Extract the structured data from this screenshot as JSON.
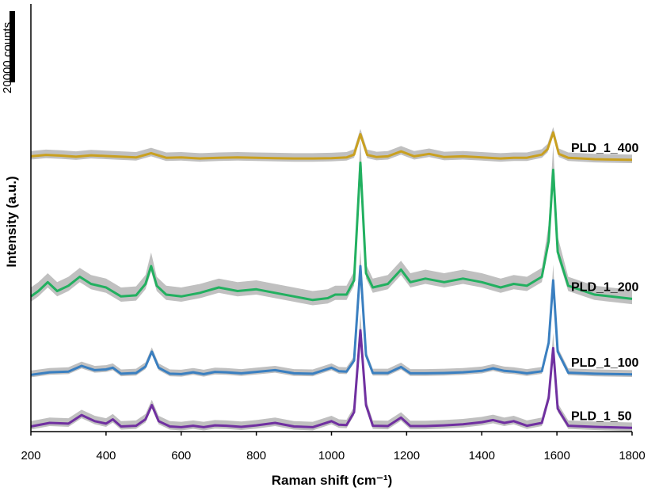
{
  "chart_data": {
    "type": "line",
    "title": "",
    "xlabel": "Raman shift (cm⁻¹)",
    "ylabel": "Intensity (a.u.)",
    "xlim": [
      200,
      1800
    ],
    "x_ticks": [
      200,
      400,
      600,
      800,
      1000,
      1200,
      1400,
      1600,
      1800
    ],
    "y_scale_bar": {
      "label": "20000 counts",
      "value": 20000
    },
    "grid": false,
    "legend": "none",
    "band_color": "#c0c0c0",
    "series": [
      {
        "name": "PLD_1_400",
        "color": "#c9a020",
        "offset": 75000,
        "x": [
          200,
          240,
          280,
          320,
          360,
          400,
          440,
          480,
          520,
          560,
          600,
          650,
          700,
          750,
          800,
          850,
          900,
          950,
          1000,
          1040,
          1060,
          1077,
          1095,
          1120,
          1150,
          1185,
          1220,
          1260,
          1300,
          1350,
          1400,
          1450,
          1485,
          1520,
          1560,
          1575,
          1590,
          1605,
          1630,
          1700,
          1800
        ],
        "y": [
          1800,
          2200,
          2000,
          1700,
          2100,
          1900,
          1700,
          1500,
          2700,
          1400,
          1500,
          1200,
          1400,
          1500,
          1400,
          1300,
          1200,
          1200,
          1300,
          1500,
          2300,
          8000,
          2200,
          1600,
          1800,
          3200,
          1800,
          2500,
          1600,
          1800,
          1500,
          1200,
          1400,
          1400,
          2300,
          3800,
          8500,
          2500,
          1400,
          1000,
          800
        ],
        "band": 1500
      },
      {
        "name": "PLD_1_200",
        "color": "#22b060",
        "offset": 35000,
        "x": [
          200,
          220,
          245,
          270,
          300,
          330,
          360,
          400,
          440,
          480,
          505,
          520,
          535,
          560,
          600,
          650,
          700,
          750,
          800,
          850,
          900,
          950,
          990,
          1010,
          1040,
          1060,
          1077,
          1092,
          1110,
          1150,
          1185,
          1210,
          1250,
          1300,
          1350,
          1400,
          1450,
          1485,
          1520,
          1560,
          1578,
          1590,
          1602,
          1630,
          1700,
          1800
        ],
        "y": [
          2500,
          4000,
          6500,
          4000,
          5500,
          8000,
          6000,
          5000,
          2500,
          2800,
          6000,
          11000,
          5500,
          3000,
          2500,
          3500,
          5000,
          4000,
          4500,
          3500,
          2500,
          1500,
          2000,
          3000,
          3000,
          7000,
          40000,
          9000,
          5000,
          6000,
          10000,
          6500,
          7500,
          6500,
          7500,
          6500,
          5000,
          6000,
          5500,
          8000,
          18000,
          38000,
          15000,
          5500,
          3000,
          1800
        ],
        "band": 2500
      },
      {
        "name": "PLD_1_100",
        "color": "#3a7fc0",
        "offset": 15000,
        "x": [
          200,
          250,
          300,
          335,
          370,
          400,
          418,
          440,
          480,
          505,
          522,
          540,
          570,
          600,
          632,
          660,
          690,
          720,
          760,
          800,
          850,
          900,
          950,
          1000,
          1020,
          1040,
          1060,
          1077,
          1092,
          1110,
          1150,
          1185,
          1210,
          1250,
          1300,
          1350,
          1400,
          1430,
          1460,
          1485,
          1520,
          1560,
          1578,
          1590,
          1602,
          1630,
          1700,
          1800
        ],
        "y": [
          500,
          1200,
          1400,
          3000,
          1800,
          2000,
          2500,
          800,
          1000,
          2800,
          7000,
          2500,
          800,
          700,
          1200,
          700,
          1300,
          1200,
          900,
          1300,
          1800,
          900,
          800,
          2500,
          1500,
          1400,
          4500,
          31000,
          6000,
          1000,
          1000,
          2700,
          900,
          900,
          1000,
          1200,
          1600,
          2300,
          1600,
          1400,
          900,
          1500,
          9500,
          27000,
          7000,
          1100,
          800,
          600
        ],
        "band": 1200
      },
      {
        "name": "PLD_1_50",
        "color": "#7030a0",
        "offset": 0,
        "x": [
          200,
          250,
          300,
          335,
          370,
          400,
          418,
          440,
          480,
          505,
          522,
          540,
          570,
          600,
          632,
          660,
          690,
          720,
          760,
          800,
          850,
          900,
          950,
          1000,
          1020,
          1040,
          1060,
          1077,
          1092,
          1110,
          1150,
          1185,
          1210,
          1250,
          1300,
          1350,
          1400,
          1430,
          1460,
          1485,
          1520,
          1560,
          1578,
          1590,
          1602,
          1630,
          1700,
          1800
        ],
        "y": [
          1000,
          2000,
          1800,
          4200,
          2500,
          1800,
          3000,
          1000,
          1200,
          3000,
          7000,
          2500,
          1000,
          800,
          1200,
          800,
          1300,
          1200,
          900,
          1300,
          2000,
          1000,
          800,
          2500,
          1500,
          1400,
          5000,
          28000,
          7000,
          1200,
          1100,
          3500,
          1100,
          1100,
          1300,
          1600,
          2200,
          2800,
          2000,
          2500,
          1200,
          2000,
          9000,
          23000,
          6000,
          1200,
          900,
          600
        ],
        "band": 1500
      }
    ]
  }
}
